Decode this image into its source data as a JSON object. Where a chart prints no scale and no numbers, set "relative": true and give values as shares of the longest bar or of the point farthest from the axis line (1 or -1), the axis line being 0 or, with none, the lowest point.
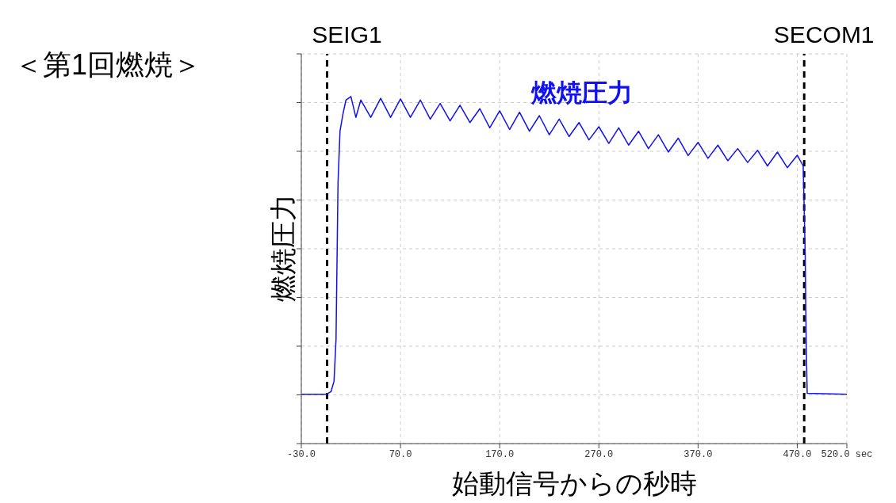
{
  "chart_data": {
    "type": "line",
    "title": "＜第1回燃焼＞",
    "xlabel": "始動信号からの秒時",
    "ylabel": "燃焼圧力",
    "relative": true,
    "grid": true,
    "legend": false,
    "marker": "none",
    "line_style": "solid",
    "xlim": [
      -30,
      520
    ],
    "xticks": [
      {
        "value": -30,
        "label": "-30.0"
      },
      {
        "value": 70,
        "label": "70.0"
      },
      {
        "value": 170,
        "label": "170.0"
      },
      {
        "value": 270,
        "label": "270.0"
      },
      {
        "value": 370,
        "label": "370.0"
      },
      {
        "value": 470,
        "label": "470.0"
      },
      {
        "value": 520,
        "label": "520.0 sec"
      }
    ],
    "ref_lines": [
      {
        "axis": "x",
        "value": -4,
        "label": "SEIG1",
        "color": "#000000",
        "line_style": "dashed"
      },
      {
        "axis": "x",
        "value": 477,
        "label": "SECOM1",
        "color": "#000000",
        "line_style": "dashed"
      }
    ],
    "series": [
      {
        "name": "燃焼圧力",
        "color": "#1010f0",
        "x": [
          -30,
          -5,
          0,
          3,
          5,
          7,
          9,
          12,
          15,
          20,
          25,
          30,
          40,
          50,
          60,
          70,
          80,
          90,
          100,
          110,
          120,
          130,
          140,
          150,
          160,
          170,
          180,
          190,
          200,
          210,
          220,
          230,
          240,
          250,
          260,
          270,
          280,
          290,
          300,
          310,
          320,
          330,
          340,
          350,
          360,
          370,
          380,
          390,
          400,
          410,
          420,
          430,
          440,
          450,
          460,
          470,
          476,
          478,
          479,
          480,
          520
        ],
        "values": [
          0.142,
          0.142,
          0.15,
          0.18,
          0.3,
          0.75,
          0.9,
          0.95,
          0.99,
          1.0,
          0.94,
          0.99,
          0.94,
          0.995,
          0.94,
          0.993,
          0.94,
          0.99,
          0.935,
          0.98,
          0.93,
          0.975,
          0.925,
          0.965,
          0.91,
          0.959,
          0.905,
          0.955,
          0.9,
          0.945,
          0.89,
          0.935,
          0.885,
          0.925,
          0.875,
          0.913,
          0.865,
          0.91,
          0.86,
          0.9,
          0.85,
          0.89,
          0.84,
          0.88,
          0.83,
          0.868,
          0.822,
          0.86,
          0.815,
          0.85,
          0.81,
          0.845,
          0.8,
          0.84,
          0.795,
          0.831,
          0.8,
          0.55,
          0.3,
          0.145,
          0.142
        ]
      }
    ]
  }
}
